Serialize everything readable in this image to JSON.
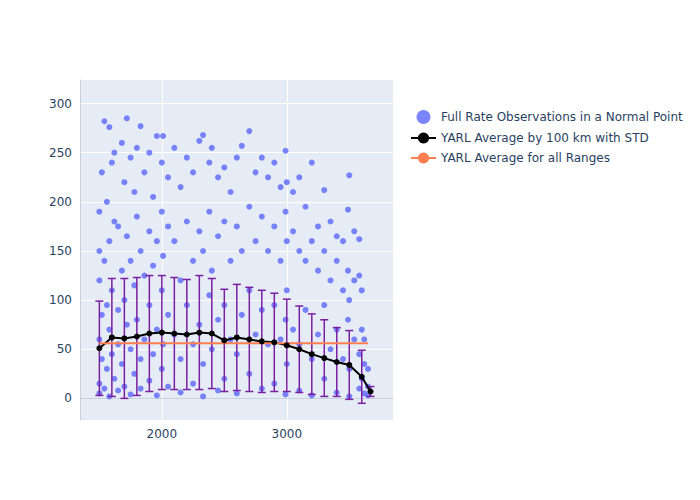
{
  "chart_data": {
    "type": "scatter",
    "xlim": [
      1345,
      3850
    ],
    "xticks": [
      2000,
      3000
    ],
    "ylim": [
      -22,
      324
    ],
    "yticks": [
      0,
      50,
      100,
      150,
      200,
      250,
      300
    ],
    "grid": true,
    "legend": "right",
    "series": [
      {
        "name": "Full Rate Observations in a Normal Point",
        "type": "scatter",
        "marker": "circle",
        "color": "#636efa",
        "x": [
          1500,
          1500,
          1500,
          1500,
          1500,
          1500,
          1520,
          1520,
          1520,
          1540,
          1540,
          1540,
          1560,
          1560,
          1560,
          1580,
          1580,
          1580,
          1580,
          1600,
          1600,
          1600,
          1620,
          1620,
          1620,
          1650,
          1650,
          1650,
          1650,
          1680,
          1680,
          1680,
          1700,
          1700,
          1700,
          1720,
          1720,
          1720,
          1750,
          1750,
          1750,
          1750,
          1780,
          1780,
          1780,
          1800,
          1800,
          1800,
          1830,
          1830,
          1830,
          1830,
          1860,
          1860,
          1860,
          1900,
          1900,
          1900,
          1900,
          1930,
          1930,
          1930,
          1960,
          1960,
          1960,
          1960,
          2000,
          2000,
          2000,
          2000,
          2010,
          2010,
          2010,
          2050,
          2050,
          2050,
          2050,
          2100,
          2100,
          2100,
          2150,
          2150,
          2150,
          2150,
          2200,
          2200,
          2200,
          2250,
          2250,
          2250,
          2250,
          2300,
          2300,
          2300,
          2330,
          2330,
          2330,
          2330,
          2380,
          2380,
          2380,
          2400,
          2400,
          2400,
          2450,
          2450,
          2450,
          2450,
          2500,
          2500,
          2500,
          2500,
          2550,
          2550,
          2550,
          2600,
          2600,
          2600,
          2600,
          2640,
          2640,
          2640,
          2700,
          2700,
          2700,
          2700,
          2750,
          2750,
          2750,
          2800,
          2800,
          2800,
          2800,
          2850,
          2850,
          2850,
          2900,
          2900,
          2900,
          2900,
          2950,
          2950,
          2950,
          2990,
          2990,
          2990,
          2990,
          3000,
          3000,
          3000,
          3000,
          3050,
          3050,
          3050,
          3100,
          3100,
          3100,
          3100,
          3150,
          3150,
          3150,
          3200,
          3200,
          3200,
          3200,
          3250,
          3250,
          3250,
          3300,
          3300,
          3300,
          3300,
          3350,
          3350,
          3350,
          3400,
          3400,
          3400,
          3400,
          3450,
          3450,
          3450,
          3490,
          3490,
          3490,
          3500,
          3500,
          3500,
          3500,
          3540,
          3540,
          3540,
          3580,
          3580,
          3580,
          3580,
          3600,
          3600,
          3600,
          3620,
          3620,
          3620,
          3650,
          3650,
          3650
        ],
        "values": [
          190,
          120,
          60,
          15,
          150,
          5,
          230,
          85,
          40,
          282,
          140,
          10,
          200,
          95,
          30,
          276,
          160,
          70,
          2,
          240,
          110,
          45,
          250,
          180,
          20,
          175,
          90,
          55,
          8,
          260,
          130,
          35,
          220,
          100,
          12,
          285,
          165,
          75,
          245,
          140,
          50,
          4,
          210,
          115,
          25,
          255,
          185,
          80,
          277,
          150,
          40,
          10,
          230,
          125,
          60,
          250,
          170,
          95,
          18,
          205,
          135,
          45,
          267,
          160,
          70,
          3,
          240,
          190,
          110,
          30,
          267,
          145,
          55,
          225,
          175,
          85,
          12,
          255,
          160,
          65,
          215,
          120,
          40,
          6,
          245,
          180,
          95,
          230,
          140,
          55,
          15,
          262,
          170,
          75,
          268,
          150,
          35,
          2,
          240,
          190,
          105,
          255,
          130,
          50,
          225,
          165,
          80,
          8,
          235,
          180,
          95,
          20,
          210,
          140,
          60,
          245,
          175,
          45,
          5,
          257,
          150,
          85,
          272,
          195,
          110,
          25,
          230,
          160,
          65,
          245,
          185,
          90,
          10,
          225,
          150,
          55,
          240,
          175,
          95,
          15,
          215,
          140,
          60,
          252,
          190,
          80,
          4,
          220,
          160,
          110,
          35,
          210,
          170,
          70,
          225,
          150,
          55,
          8,
          195,
          140,
          90,
          240,
          160,
          40,
          3,
          175,
          130,
          65,
          212,
          150,
          95,
          20,
          180,
          120,
          50,
          165,
          140,
          70,
          6,
          160,
          110,
          40,
          192,
          130,
          80,
          227,
          100,
          30,
          2,
          170,
          120,
          60,
          162,
          125,
          45,
          10,
          110,
          70,
          20,
          60,
          35,
          5,
          30,
          12,
          3
        ]
      },
      {
        "name": "YARL Average by 100 km with STD",
        "type": "line",
        "marker": "circle",
        "color": "#000000",
        "x": [
          1500,
          1600,
          1700,
          1800,
          1900,
          2000,
          2100,
          2200,
          2300,
          2400,
          2500,
          2600,
          2700,
          2800,
          2900,
          3000,
          3100,
          3200,
          3300,
          3400,
          3500,
          3600,
          3670
        ],
        "values": [
          51,
          62,
          61,
          63,
          66,
          67,
          66,
          65,
          67,
          66,
          59,
          62,
          60,
          58,
          57,
          54,
          50,
          45,
          41,
          37,
          34,
          22,
          7
        ],
        "std": [
          48,
          60,
          61,
          60,
          59,
          58,
          57,
          56,
          58,
          56,
          52,
          54,
          53,
          52,
          50,
          47,
          44,
          41,
          39,
          35,
          35,
          27,
          5
        ]
      },
      {
        "name": "YARL Average for all Ranges",
        "type": "line",
        "color": "#ff7f50",
        "x": [
          1500,
          3650
        ],
        "values": [
          56,
          56
        ]
      }
    ]
  }
}
